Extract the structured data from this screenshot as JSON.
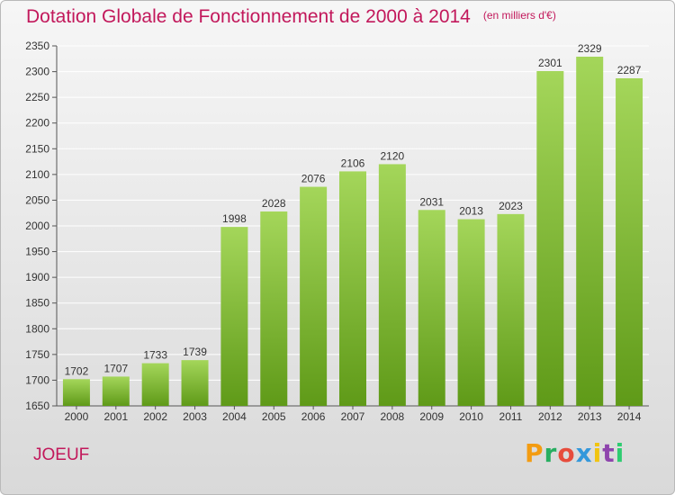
{
  "header": {
    "title": "Dotation Globale de Fonctionnement de 2000 à 2014",
    "unit_note": "(en milliers d'€)"
  },
  "footer": {
    "commune": "JOEUF",
    "brand": "Proxiti"
  },
  "colors": {
    "title": "#c2185b",
    "bar_top": "#a4d65a",
    "bar_bottom": "#5f9a18",
    "grid": "#ffffff",
    "brand_letters": [
      "#f39c12",
      "#27ae60",
      "#e74c3c",
      "#3498db",
      "#f1c40f",
      "#8e44ad",
      "#2ecc71"
    ]
  },
  "chart_data": {
    "type": "bar",
    "categories": [
      "2000",
      "2001",
      "2002",
      "2003",
      "2004",
      "2005",
      "2006",
      "2007",
      "2008",
      "2009",
      "2010",
      "2011",
      "2012",
      "2013",
      "2014"
    ],
    "values": [
      1702,
      1707,
      1733,
      1739,
      1998,
      2028,
      2076,
      2106,
      2120,
      2031,
      2013,
      2023,
      2301,
      2329,
      2287
    ],
    "ylim": [
      1650,
      2350
    ],
    "yticks": [
      1650,
      1700,
      1750,
      1800,
      1850,
      1900,
      1950,
      2000,
      2050,
      2100,
      2150,
      2200,
      2250,
      2300,
      2350
    ],
    "grid": true,
    "legend": "none"
  }
}
